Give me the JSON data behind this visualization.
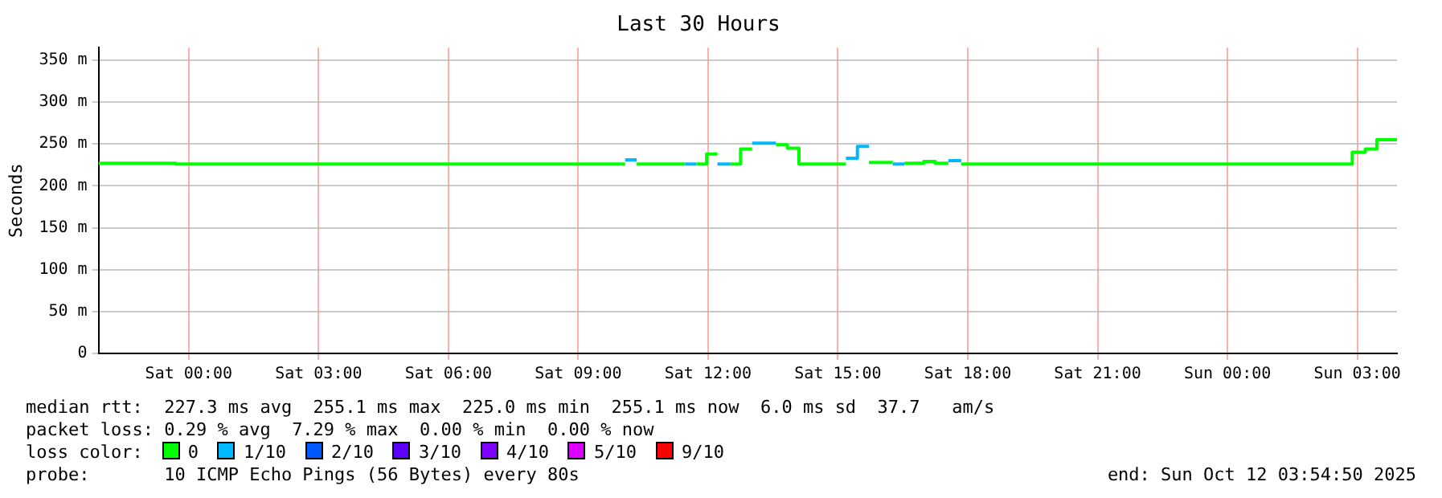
{
  "chart_data": {
    "type": "step",
    "title": "Last 30 Hours",
    "ylabel": "Seconds",
    "legend_title": "loss color:",
    "legend": "bottom",
    "grid": true,
    "xlim": [
      "2025-10-10T21:55",
      "2025-10-12T03:55"
    ],
    "xticks": [
      {
        "value": "2025-10-11T00:00",
        "label": "Sat 00:00"
      },
      {
        "value": "2025-10-11T03:00",
        "label": "Sat 03:00"
      },
      {
        "value": "2025-10-11T06:00",
        "label": "Sat 06:00"
      },
      {
        "value": "2025-10-11T09:00",
        "label": "Sat 09:00"
      },
      {
        "value": "2025-10-11T12:00",
        "label": "Sat 12:00"
      },
      {
        "value": "2025-10-11T15:00",
        "label": "Sat 15:00"
      },
      {
        "value": "2025-10-11T18:00",
        "label": "Sat 18:00"
      },
      {
        "value": "2025-10-11T21:00",
        "label": "Sat 21:00"
      },
      {
        "value": "2025-10-12T00:00",
        "label": "Sun 00:00"
      },
      {
        "value": "2025-10-12T03:00",
        "label": "Sun 03:00"
      }
    ],
    "ylim": [
      0,
      365
    ],
    "yticks": [
      0,
      {
        "value": 50,
        "label": "50 m"
      },
      {
        "value": 100,
        "label": "100 m"
      },
      {
        "value": 150,
        "label": "150 m"
      },
      {
        "value": 200,
        "label": "200 m"
      },
      {
        "value": 250,
        "label": "250 m"
      },
      {
        "value": 300,
        "label": "300 m"
      },
      {
        "value": 350,
        "label": "350 m"
      }
    ],
    "series": [
      {
        "name": "0",
        "color": "#00ff00",
        "x": [
          "2025-10-10T21:55",
          "2025-10-10T23:42",
          "2025-10-10T23:42",
          "2025-10-11T10:05",
          null,
          "2025-10-11T10:21",
          "2025-10-11T11:28",
          null,
          "2025-10-11T11:44",
          "2025-10-11T11:58",
          "2025-10-11T11:58",
          "2025-10-11T12:13",
          null,
          "2025-10-11T12:31",
          "2025-10-11T12:45",
          "2025-10-11T12:45",
          "2025-10-11T13:01",
          null,
          "2025-10-11T13:34",
          "2025-10-11T13:50",
          "2025-10-11T13:50",
          "2025-10-11T14:06",
          "2025-10-11T14:06",
          "2025-10-11T15:11",
          null,
          "2025-10-11T15:43",
          "2025-10-11T16:16",
          null,
          "2025-10-11T16:32",
          "2025-10-11T16:59",
          "2025-10-11T16:59",
          "2025-10-11T17:15",
          "2025-10-11T17:15",
          "2025-10-11T17:33",
          null,
          "2025-10-11T17:51",
          "2025-10-12T02:53",
          "2025-10-12T02:53",
          "2025-10-12T03:11",
          "2025-10-12T03:11",
          "2025-10-12T03:27",
          "2025-10-12T03:27",
          "2025-10-12T03:55"
        ],
        "values": [
          227,
          227,
          226,
          226,
          null,
          226,
          226,
          null,
          226,
          226,
          238,
          238,
          null,
          226,
          226,
          244,
          244,
          null,
          249,
          249,
          245,
          245,
          226,
          226,
          null,
          228,
          228,
          null,
          227,
          227,
          229,
          229,
          227,
          227,
          null,
          226,
          226,
          240,
          240,
          244,
          244,
          255,
          255
        ]
      },
      {
        "name": "1/10",
        "color": "#00b8ff",
        "x": [
          "2025-10-11T10:05",
          "2025-10-11T10:21",
          null,
          "2025-10-11T11:28",
          "2025-10-11T11:44",
          null,
          "2025-10-11T12:13",
          "2025-10-11T12:31",
          null,
          "2025-10-11T13:01",
          "2025-10-11T13:34",
          null,
          "2025-10-11T15:11",
          "2025-10-11T15:27",
          "2025-10-11T15:27",
          "2025-10-11T15:43",
          null,
          "2025-10-11T16:16",
          "2025-10-11T16:32",
          null,
          "2025-10-11T17:33",
          "2025-10-11T17:51"
        ],
        "values": [
          231,
          231,
          null,
          226,
          226,
          null,
          226,
          226,
          null,
          251,
          251,
          null,
          233,
          233,
          247,
          247,
          null,
          226,
          226,
          null,
          230,
          230
        ]
      },
      {
        "name": "2/10",
        "color": "#0059ff"
      },
      {
        "name": "3/10",
        "color": "#5e00ff"
      },
      {
        "name": "4/10",
        "color": "#7e00ff"
      },
      {
        "name": "5/10",
        "color": "#dd00ff"
      },
      {
        "name": "9/10",
        "color": "#ff0000"
      }
    ],
    "annotations": [
      "median rtt:  227.3 ms avg  255.1 ms max  225.0 ms min  255.1 ms now  6.0 ms sd  37.7   am/s",
      "packet loss: 0.29 % avg  7.29 % max  0.00 % min  0.00 % now",
      "probe:       10 ICMP Echo Pings (56 Bytes) every 80s",
      "end: Sun Oct 12 03:54:50 2025"
    ]
  }
}
